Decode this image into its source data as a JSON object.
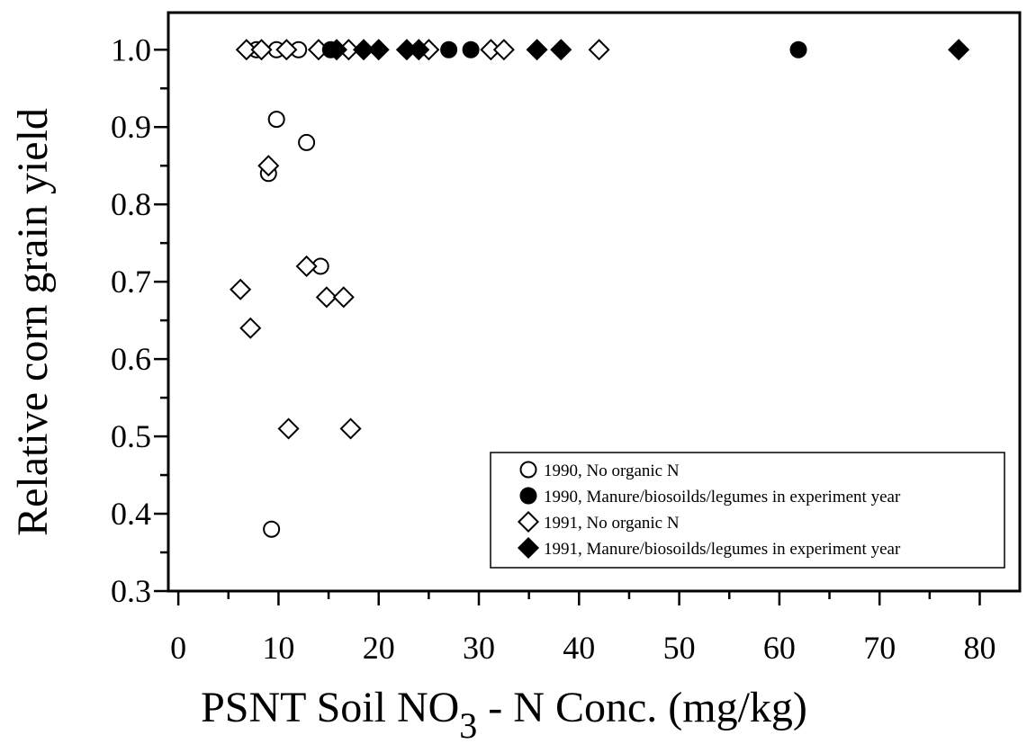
{
  "chart_data": {
    "type": "scatter",
    "xlabel_main": "PSNT Soil NO",
    "xlabel_sub": "3",
    "xlabel_tail": " - N Conc. (mg/kg)",
    "ylabel": "Relative corn grain yield",
    "xlim": [
      -1,
      84
    ],
    "ylim": [
      0.3,
      1.048
    ],
    "x_ticks": [
      0,
      10,
      20,
      30,
      40,
      50,
      60,
      70,
      80
    ],
    "x_tick_labels": [
      "0",
      "10",
      "20",
      "30",
      "40",
      "50",
      "60",
      "70",
      "80"
    ],
    "y_ticks": [
      0.3,
      0.4,
      0.5,
      0.6,
      0.7,
      0.8,
      0.9,
      1.0
    ],
    "y_tick_labels": [
      "0.3",
      "0.4",
      "0.5",
      "0.6",
      "0.7",
      "0.8",
      "0.9",
      "1.0"
    ],
    "grid": false,
    "legend_position": "bottom-right",
    "series": [
      {
        "name": "1990, No organic N",
        "marker": "circle-open",
        "points": [
          [
            7.8,
            1.0
          ],
          [
            9.8,
            1.0
          ],
          [
            12.0,
            1.0
          ],
          [
            9.8,
            0.91
          ],
          [
            12.8,
            0.88
          ],
          [
            9.0,
            0.84
          ],
          [
            14.2,
            0.72
          ],
          [
            9.3,
            0.38
          ]
        ]
      },
      {
        "name": "1990, Manure/biosoilds/legumes in experiment year",
        "marker": "circle-filled",
        "points": [
          [
            15.2,
            1.0
          ],
          [
            27.0,
            1.0
          ],
          [
            29.2,
            1.0
          ],
          [
            61.9,
            1.0
          ]
        ]
      },
      {
        "name": "1991, No organic N",
        "marker": "diamond-open",
        "points": [
          [
            6.8,
            1.0
          ],
          [
            8.3,
            1.0
          ],
          [
            10.8,
            1.0
          ],
          [
            14.0,
            1.0
          ],
          [
            17.0,
            1.0
          ],
          [
            25.0,
            1.0
          ],
          [
            31.2,
            1.0
          ],
          [
            32.5,
            1.0
          ],
          [
            42.0,
            1.0
          ],
          [
            9.0,
            0.85
          ],
          [
            12.8,
            0.72
          ],
          [
            6.2,
            0.69
          ],
          [
            14.8,
            0.68
          ],
          [
            16.5,
            0.68
          ],
          [
            7.2,
            0.64
          ],
          [
            11.0,
            0.51
          ],
          [
            17.2,
            0.51
          ]
        ]
      },
      {
        "name": "1991, Manure/biosoilds/legumes in experiment year",
        "marker": "diamond-filled",
        "points": [
          [
            15.8,
            1.0
          ],
          [
            18.5,
            1.0
          ],
          [
            20.0,
            1.0
          ],
          [
            22.8,
            1.0
          ],
          [
            24.0,
            1.0
          ],
          [
            35.8,
            1.0
          ],
          [
            38.2,
            1.0
          ],
          [
            77.9,
            1.0
          ]
        ]
      }
    ]
  }
}
